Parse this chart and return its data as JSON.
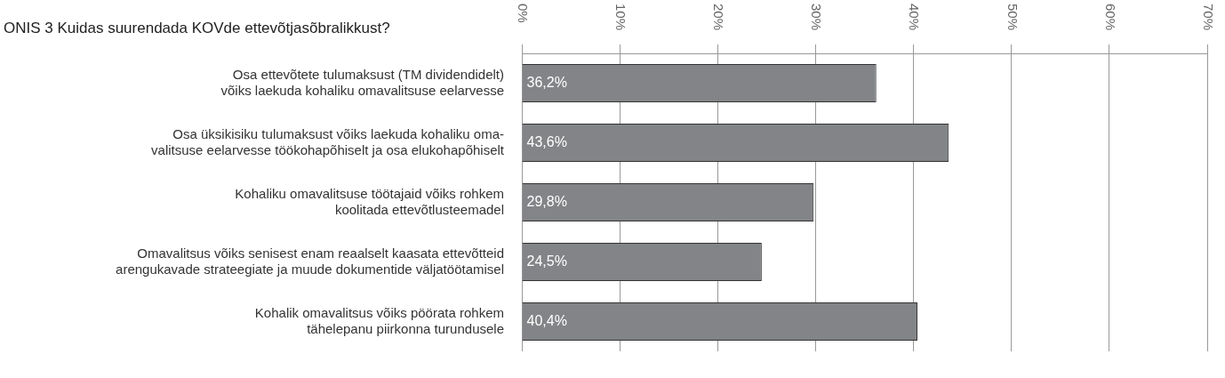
{
  "chart_data": {
    "type": "bar",
    "orientation": "horizontal",
    "title": "ONIS 3  Kuidas suurendada KOVde ettevõtjasõbralikkust?",
    "categories": [
      "Osa ettevõtete tulumaksust (TM dividendidelt)\nvõiks laekuda kohaliku omavalitsuse eelarvesse",
      "Osa üksikisiku tulumaksust võiks laekuda kohaliku oma-\nvalitsuse eelarvesse töökohapõhiselt ja osa elukohapõhiselt",
      "Kohaliku omavalitsuse töötajaid võiks rohkem\nkoolitada ettevõtlusteemadel",
      "Omavalitsus võiks senisest enam reaalselt kaasata ettevõtteid\narengukavade strateegiate ja muude dokumentide väljatöötamisel",
      "Kohalik omavalitsus võiks pöörata rohkem\ntähelepanu piirkonna turundusele"
    ],
    "values": [
      36.2,
      43.6,
      29.8,
      24.5,
      40.4
    ],
    "value_labels": [
      "36,2%",
      "43,6%",
      "29,8%",
      "24,5%",
      "40,4%"
    ],
    "color": "#838487",
    "xlim": [
      0,
      70
    ],
    "xticks": [
      {
        "value": 0,
        "label": "0%"
      },
      {
        "value": 10,
        "label": "10%"
      },
      {
        "value": 20,
        "label": "20%"
      },
      {
        "value": 30,
        "label": "30%"
      },
      {
        "value": 40,
        "label": "40%"
      },
      {
        "value": 50,
        "label": "50%"
      },
      {
        "value": 60,
        "label": "60%"
      },
      {
        "value": 70,
        "label": "70%"
      }
    ],
    "grid": "x",
    "legend": false
  }
}
